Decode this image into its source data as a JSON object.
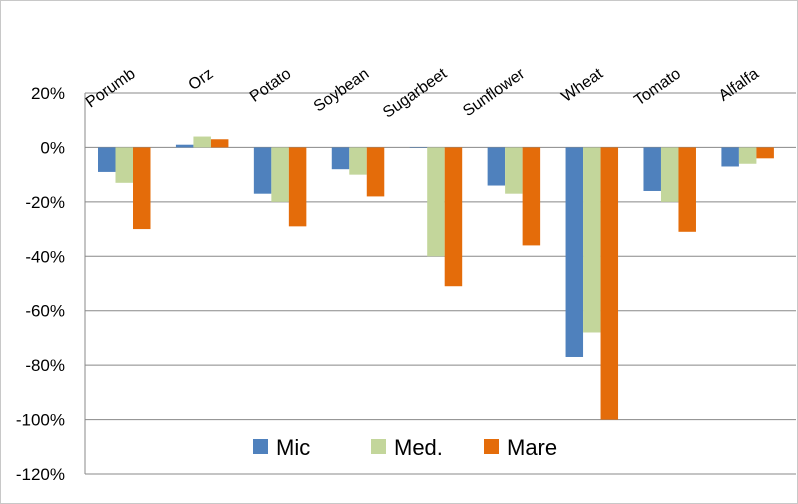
{
  "chart_data": {
    "type": "bar",
    "title": "",
    "xlabel": "",
    "ylabel": "",
    "categories": [
      "Porumb",
      "Orz",
      "Potato",
      "Soybean",
      "Sugarbeet",
      "Sunflower",
      "Wheat",
      "Tomato",
      "Alfalfa"
    ],
    "series": [
      {
        "name": "Mic",
        "color": "#4f81bd",
        "values": [
          -9,
          1,
          -17,
          -8,
          0,
          -14,
          -77,
          -16,
          -7
        ]
      },
      {
        "name": "Med.",
        "color": "#c3d69b",
        "values": [
          -13,
          4,
          -20,
          -10,
          -40,
          -17,
          -68,
          -20,
          -6
        ]
      },
      {
        "name": "Mare",
        "color": "#e46c0a",
        "values": [
          -30,
          3,
          -29,
          -18,
          -51,
          -36,
          -100,
          -31,
          -4
        ]
      }
    ],
    "ylim": [
      -120,
      20
    ],
    "yticks": [
      20,
      0,
      -20,
      -40,
      -60,
      -80,
      -100,
      -120
    ],
    "ytick_labels": [
      "20%",
      "0%",
      "-20%",
      "-40%",
      "-60%",
      "-80%",
      "-100%",
      "-120%"
    ],
    "grid": true,
    "legend_position": "bottom-inside"
  }
}
